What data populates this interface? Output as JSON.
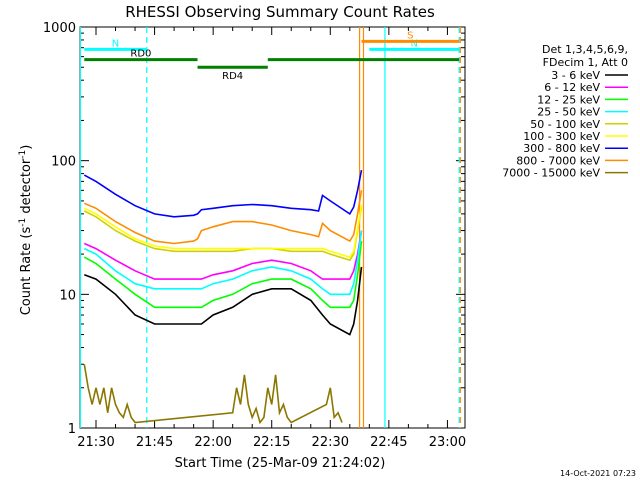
{
  "chart_data": {
    "type": "line",
    "title": "RHESSI Observing Summary Count Rates",
    "xlabel": "Start Time (25-Mar-09 21:24:02)",
    "ylabel_main": "Count Rate (s",
    "ylabel_sup1": "-1",
    "ylabel_mid": " detector",
    "ylabel_sup2": "-1",
    "ylabel_end": ")",
    "yscale": "log",
    "ylim": [
      1,
      1000
    ],
    "xlim_minutes": [
      -4.1,
      94.5
    ],
    "xtick_minutes": [
      0,
      15,
      30,
      45,
      60,
      75,
      90
    ],
    "xtick_labels": [
      "21:30",
      "21:45",
      "22:00",
      "22:15",
      "22:30",
      "22:45",
      "23:00"
    ],
    "yticks": [
      1,
      10,
      100,
      1000
    ],
    "ytick_labels": [
      "1",
      "10",
      "100",
      "1000"
    ],
    "legend": {
      "header": [
        "Det 1,3,4,5,6,9,",
        "FDecim 1, Att 0"
      ],
      "placement": "top-right outside"
    },
    "series": [
      {
        "name": "3 - 6 keV",
        "color": "#000000",
        "x": [
          -3,
          0,
          5,
          10,
          15,
          20,
          25,
          27,
          30,
          35,
          40,
          45,
          50,
          55,
          58,
          60,
          65,
          66,
          67,
          68
        ],
        "y": [
          14,
          13,
          10,
          7,
          6,
          6,
          6,
          6,
          7,
          8,
          10,
          11,
          11,
          9,
          7,
          6,
          5,
          6,
          9,
          16
        ]
      },
      {
        "name": "6 - 12 keV",
        "color": "#ff00ff",
        "x": [
          -3,
          0,
          5,
          10,
          15,
          20,
          25,
          27,
          30,
          35,
          40,
          45,
          50,
          55,
          58,
          60,
          65,
          66,
          67,
          68
        ],
        "y": [
          24,
          22,
          18,
          15,
          13,
          13,
          13,
          13,
          14,
          15,
          17,
          18,
          17,
          15,
          13,
          13,
          13,
          15,
          20,
          30
        ]
      },
      {
        "name": "12 - 25 keV",
        "color": "#00ff00",
        "x": [
          -3,
          0,
          5,
          10,
          15,
          20,
          25,
          27,
          30,
          35,
          40,
          45,
          50,
          55,
          58,
          60,
          65,
          66,
          67,
          68
        ],
        "y": [
          19,
          17,
          13,
          10,
          8,
          8,
          8,
          8,
          9,
          10,
          12,
          13,
          13,
          11,
          9,
          8,
          8,
          9,
          14,
          25
        ]
      },
      {
        "name": "25 - 50 keV",
        "color": "#00ffff",
        "x": [
          -3,
          0,
          5,
          10,
          15,
          20,
          25,
          27,
          30,
          35,
          40,
          45,
          50,
          55,
          58,
          60,
          65,
          66,
          67,
          68
        ],
        "y": [
          22,
          20,
          15,
          12,
          11,
          11,
          11,
          11,
          12,
          13,
          15,
          16,
          15,
          13,
          11,
          10,
          10,
          12,
          18,
          30
        ]
      },
      {
        "name": "50 - 100 keV",
        "color": "#d0d000",
        "x": [
          -3,
          0,
          5,
          10,
          15,
          20,
          25,
          26,
          27,
          30,
          35,
          40,
          45,
          50,
          55,
          57,
          58,
          60,
          65,
          66,
          67,
          68
        ],
        "y": [
          42,
          38,
          30,
          25,
          22,
          21,
          21,
          21,
          21,
          21,
          21,
          22,
          22,
          21,
          21,
          21,
          21,
          20,
          18,
          20,
          30,
          45
        ]
      },
      {
        "name": "100 - 300 keV",
        "color": "#ffff00",
        "x": [
          -3,
          0,
          5,
          10,
          15,
          20,
          25,
          27,
          30,
          35,
          40,
          45,
          50,
          55,
          58,
          60,
          65,
          66,
          67,
          68
        ],
        "y": [
          44,
          40,
          32,
          26,
          23,
          22,
          22,
          22,
          22,
          22,
          22,
          22,
          22,
          22,
          22,
          21,
          19,
          21,
          31,
          47
        ]
      },
      {
        "name": "300 - 800 keV",
        "color": "#0000ff",
        "x": [
          -3,
          0,
          5,
          10,
          15,
          20,
          25,
          26,
          27,
          30,
          35,
          40,
          45,
          50,
          55,
          57,
          58,
          60,
          65,
          66,
          67,
          68
        ],
        "y": [
          78,
          70,
          56,
          46,
          40,
          38,
          39,
          40,
          43,
          44,
          46,
          47,
          46,
          44,
          43,
          42,
          55,
          50,
          40,
          45,
          60,
          85
        ]
      },
      {
        "name": "800 - 7000 keV",
        "color": "#ff8c00",
        "x": [
          -3,
          0,
          5,
          10,
          15,
          20,
          25,
          26,
          27,
          30,
          35,
          40,
          45,
          50,
          55,
          57,
          58,
          60,
          65,
          66,
          67,
          68
        ],
        "y": [
          48,
          44,
          35,
          29,
          25,
          24,
          25,
          26,
          30,
          32,
          35,
          35,
          33,
          30,
          28,
          27,
          34,
          30,
          25,
          28,
          40,
          60
        ]
      },
      {
        "name": "7000 - 15000 keV",
        "color": "#8b7700",
        "x": [
          -3,
          -2,
          -1,
          0,
          1,
          2,
          3,
          4,
          5,
          6,
          7,
          8,
          9,
          10,
          35,
          36,
          37,
          38,
          39,
          40,
          41,
          42,
          43,
          44,
          45,
          46,
          47,
          48,
          49,
          50,
          59,
          60,
          61,
          62,
          63
        ],
        "y": [
          3,
          2,
          1.5,
          2,
          1.5,
          2,
          1.3,
          2,
          1.5,
          1.3,
          1.2,
          1.5,
          1.2,
          1.1,
          1.3,
          2,
          1.5,
          2.5,
          1.5,
          1.2,
          1.4,
          1.1,
          1.2,
          2,
          1.5,
          2.5,
          1.3,
          1.5,
          1.2,
          1.1,
          1.5,
          2,
          1.2,
          1.3,
          1.1
        ]
      }
    ],
    "attenuator_bars": [
      {
        "label": "N",
        "color": "#00ffff",
        "x_start_min": -3,
        "x_end_min": 13,
        "level": 680
      },
      {
        "label": "N",
        "color": "#00ffff",
        "x_start_min": 70,
        "x_end_min": 93,
        "level": 680
      },
      {
        "label": "S",
        "color": "#ff8c00",
        "x_start_min": 68,
        "x_end_min": 93,
        "level": 780
      },
      {
        "label": "RD0",
        "color": "#008000",
        "x_start_min": -3,
        "x_end_min": 26,
        "level": 570
      },
      {
        "label": "RD4",
        "color": "#008000",
        "x_start_min": 26,
        "x_end_min": 44,
        "level": 500
      },
      {
        "label": "",
        "color": "#008000",
        "x_start_min": 44,
        "x_end_min": 93,
        "level": 570
      }
    ],
    "vertical_markers": [
      {
        "x_min": -4,
        "color": "#00ffff",
        "style": "solid"
      },
      {
        "x_min": 13,
        "color": "#00ffff",
        "style": "dashed"
      },
      {
        "x_min": 67.5,
        "color": "#ff8c00",
        "style": "solid"
      },
      {
        "x_min": 68.5,
        "color": "#ff8c00",
        "style": "solid"
      },
      {
        "x_min": 74,
        "color": "#00ffff",
        "style": "solid"
      },
      {
        "x_min": 93,
        "color": "#00ffff",
        "style": "dashed"
      },
      {
        "x_min": 93.3,
        "color": "#ff8c00",
        "style": "dashed"
      }
    ],
    "timestamp": "14-Oct-2021 07:23"
  }
}
